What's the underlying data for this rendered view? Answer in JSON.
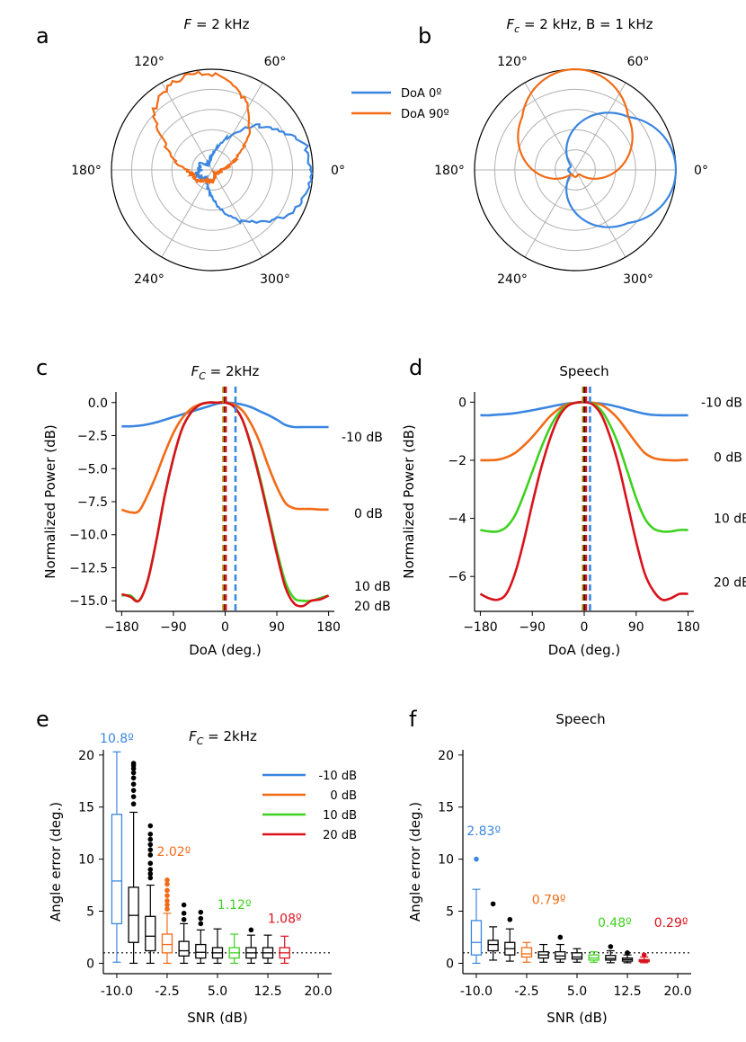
{
  "colors": {
    "blue": "#3a86e0",
    "orange": "#f26b16",
    "green": "#3fd11f",
    "red": "#d9121c",
    "black": "#000000",
    "grid": "#b0b0b0"
  },
  "chart_data": [
    {
      "panel": "a",
      "type": "polar",
      "title": "F = 2 kHz",
      "angle_ticks": [
        "0°",
        "60°",
        "120°",
        "180°",
        "240°",
        "300°"
      ],
      "radial_rings": 4,
      "series": [
        {
          "name": "DoA 0º",
          "color": "#3a86e0",
          "shape": "measured",
          "angles_deg": [
            0,
            15,
            30,
            45,
            60,
            75,
            90,
            105,
            120,
            135,
            150,
            165,
            180,
            195,
            210,
            225,
            240,
            255,
            270,
            285,
            300,
            315,
            330,
            345
          ],
          "radii": [
            0.98,
            0.96,
            0.78,
            0.62,
            0.4,
            0.25,
            0.14,
            0.1,
            0.08,
            0.07,
            0.12,
            0.14,
            0.12,
            0.16,
            0.14,
            0.12,
            0.1,
            0.18,
            0.28,
            0.42,
            0.6,
            0.72,
            0.88,
            0.95
          ]
        },
        {
          "name": "DoA 90º",
          "color": "#f26b16",
          "shape": "measured",
          "angles_deg": [
            0,
            15,
            30,
            45,
            60,
            75,
            90,
            105,
            120,
            135,
            150,
            165,
            180,
            195,
            210,
            225,
            240,
            255,
            270,
            285,
            300,
            315,
            330,
            345
          ],
          "radii": [
            0.1,
            0.18,
            0.3,
            0.52,
            0.72,
            0.86,
            0.95,
            0.98,
            0.92,
            0.82,
            0.55,
            0.38,
            0.25,
            0.2,
            0.18,
            0.16,
            0.12,
            0.1,
            0.12,
            0.1,
            0.06,
            0.05,
            0.06,
            0.08
          ]
        }
      ]
    },
    {
      "panel": "b",
      "type": "polar",
      "title": "F_c = 2 kHz, B = 1 kHz",
      "angle_ticks": [
        "0°",
        "60°",
        "120°",
        "180°",
        "240°",
        "300°"
      ],
      "radial_rings": 4,
      "series": [
        {
          "name": "DoA 0º",
          "color": "#3a86e0",
          "shape": "cardioid",
          "orientation_deg": 0
        },
        {
          "name": "DoA 90º",
          "color": "#f26b16",
          "shape": "cardioid",
          "orientation_deg": 90
        }
      ]
    },
    {
      "panel": "c",
      "type": "line",
      "title": "F_C = 2kHz",
      "xlabel": "DoA (deg.)",
      "ylabel": "Normalized Power (dB)",
      "xlim": [
        -190,
        190
      ],
      "ylim": [
        -15.8,
        0.8
      ],
      "xticks": [
        -180,
        -90,
        0,
        90,
        180
      ],
      "yticks": [
        0.0,
        -2.5,
        -5.0,
        -7.5,
        -10.0,
        -12.5,
        -15.0
      ],
      "x": [
        -180,
        -165,
        -150,
        -135,
        -120,
        -105,
        -90,
        -75,
        -60,
        -45,
        -30,
        -15,
        0,
        15,
        30,
        45,
        60,
        75,
        90,
        105,
        120,
        135,
        150,
        165,
        180
      ],
      "series": [
        {
          "name": "-10 dB",
          "color": "#3a86e0",
          "values": [
            -1.8,
            -1.8,
            -1.75,
            -1.65,
            -1.5,
            -1.3,
            -1.1,
            -0.9,
            -0.7,
            -0.5,
            -0.3,
            -0.1,
            0.0,
            -0.05,
            -0.15,
            -0.35,
            -0.65,
            -0.95,
            -1.3,
            -1.7,
            -1.85,
            -1.85,
            -1.85,
            -1.85,
            -1.85
          ]
        },
        {
          "name": "0 dB",
          "color": "#f26b16",
          "values": [
            -8.1,
            -8.3,
            -8.2,
            -7.0,
            -5.5,
            -3.8,
            -2.3,
            -1.2,
            -0.5,
            -0.15,
            0,
            0,
            0,
            -0.15,
            -0.6,
            -1.6,
            -3.0,
            -4.8,
            -6.4,
            -7.6,
            -8.0,
            -8.05,
            -8.05,
            -8.1,
            -8.1
          ]
        },
        {
          "name": "10 dB",
          "color": "#3fd11f",
          "values": [
            -14.6,
            -14.6,
            -15.0,
            -13.5,
            -10.5,
            -7.0,
            -4.2,
            -2.0,
            -0.8,
            -0.2,
            0,
            0,
            0,
            -0.3,
            -1.3,
            -3.2,
            -5.6,
            -8.4,
            -11.2,
            -13.6,
            -14.8,
            -15.0,
            -15.0,
            -14.8,
            -14.6
          ]
        },
        {
          "name": "20 dB",
          "color": "#d9121c",
          "values": [
            -14.5,
            -14.7,
            -15.0,
            -13.5,
            -10.5,
            -7.0,
            -4.2,
            -2.0,
            -0.8,
            -0.2,
            0,
            0,
            0,
            -0.3,
            -1.3,
            -3.3,
            -5.8,
            -8.6,
            -11.5,
            -14.0,
            -15.2,
            -15.4,
            -15.0,
            -14.9,
            -14.6
          ]
        }
      ],
      "vlines": [
        {
          "x": -3,
          "color": "#f26b16"
        },
        {
          "x": -1,
          "color": "#3fd11f"
        },
        {
          "x": 0,
          "color": "#000000"
        },
        {
          "x": 1,
          "color": "#d9121c"
        },
        {
          "x": 18,
          "color": "#3a86e0"
        }
      ],
      "end_labels": [
        {
          "text": "-10 dB",
          "y": -2.6
        },
        {
          "text": "0 dB",
          "y": -8.4
        },
        {
          "text": "10 dB",
          "y": -13.9
        },
        {
          "text": "20 dB",
          "y": -15.4
        }
      ]
    },
    {
      "panel": "d",
      "type": "line",
      "title": "Speech",
      "xlabel": "DoA (deg.)",
      "ylabel": "Normalized Power (dB)",
      "xlim": [
        -190,
        190
      ],
      "ylim": [
        -7.2,
        0.35
      ],
      "xticks": [
        -180,
        -90,
        0,
        90,
        180
      ],
      "yticks": [
        0,
        -2,
        -4,
        -6
      ],
      "x": [
        -180,
        -165,
        -150,
        -135,
        -120,
        -105,
        -90,
        -75,
        -60,
        -45,
        -30,
        -15,
        0,
        15,
        30,
        45,
        60,
        75,
        90,
        105,
        120,
        135,
        150,
        165,
        180
      ],
      "series": [
        {
          "name": "-10 dB",
          "color": "#3a86e0",
          "values": [
            -0.45,
            -0.45,
            -0.43,
            -0.41,
            -0.38,
            -0.33,
            -0.28,
            -0.22,
            -0.16,
            -0.1,
            -0.05,
            -0.02,
            0,
            -0.02,
            -0.05,
            -0.1,
            -0.17,
            -0.25,
            -0.33,
            -0.4,
            -0.44,
            -0.45,
            -0.45,
            -0.45,
            -0.45
          ]
        },
        {
          "name": "0 dB",
          "color": "#f26b16",
          "values": [
            -2.0,
            -2.0,
            -1.98,
            -1.9,
            -1.75,
            -1.5,
            -1.2,
            -0.85,
            -0.5,
            -0.25,
            -0.08,
            -0.02,
            0,
            -0.02,
            -0.1,
            -0.3,
            -0.6,
            -1.0,
            -1.4,
            -1.75,
            -1.92,
            -1.98,
            -2.0,
            -2.0,
            -1.98
          ]
        },
        {
          "name": "10 dB",
          "color": "#3fd11f",
          "values": [
            -4.4,
            -4.45,
            -4.45,
            -4.3,
            -3.9,
            -3.2,
            -2.4,
            -1.6,
            -0.9,
            -0.4,
            -0.12,
            -0.02,
            0,
            -0.05,
            -0.3,
            -0.8,
            -1.5,
            -2.4,
            -3.3,
            -4.0,
            -4.35,
            -4.45,
            -4.45,
            -4.4,
            -4.4
          ]
        },
        {
          "name": "20 dB",
          "color": "#d9121c",
          "values": [
            -6.6,
            -6.75,
            -6.8,
            -6.6,
            -5.9,
            -4.8,
            -3.5,
            -2.3,
            -1.3,
            -0.55,
            -0.15,
            -0.02,
            0,
            -0.08,
            -0.45,
            -1.2,
            -2.2,
            -3.5,
            -4.8,
            -5.9,
            -6.5,
            -6.8,
            -6.75,
            -6.6,
            -6.6
          ]
        }
      ],
      "vlines": [
        {
          "x": -2,
          "color": "#f26b16"
        },
        {
          "x": 0,
          "color": "#3fd11f"
        },
        {
          "x": 1,
          "color": "#000000"
        },
        {
          "x": 3,
          "color": "#d9121c"
        },
        {
          "x": 10,
          "color": "#3a86e0"
        }
      ],
      "end_labels": [
        {
          "text": "-10 dB",
          "y": 0
        },
        {
          "text": "0 dB",
          "y": -1.9
        },
        {
          "text": "10 dB",
          "y": -4.0
        },
        {
          "text": "20 dB",
          "y": -6.2
        }
      ]
    },
    {
      "panel": "e",
      "type": "box",
      "title": "F_C = 2kHz",
      "xlabel": "SNR (dB)",
      "ylabel": "Angle error (deg.)",
      "ylim": [
        -1,
        20.5
      ],
      "yticks": [
        0,
        5,
        10,
        15,
        20
      ],
      "x_positions": [
        -10,
        -7.5,
        -5,
        -2.5,
        0,
        2.5,
        5,
        7.5,
        10,
        12.5,
        15,
        17.5,
        20
      ],
      "xticks": [
        -10.0,
        -2.5,
        5.0,
        12.5,
        20.0
      ],
      "xticklabels": [
        "-10.0",
        "-2.5",
        "5.0",
        "12.5",
        "20.0"
      ],
      "reference_line": 1.0,
      "boxes": [
        {
          "snr": -10,
          "color": "#3a86e0",
          "q1": 3.8,
          "med": 7.9,
          "q3": 14.3,
          "lo": 0.1,
          "hi": 20.3,
          "fliers": []
        },
        {
          "snr": -7.5,
          "color": "#000000",
          "q1": 2.0,
          "med": 4.6,
          "q3": 7.3,
          "lo": 0.0,
          "hi": 14.5,
          "fliers": [
            15.3,
            16.0,
            16.6,
            17.2,
            17.8,
            18.3,
            18.7,
            19.0,
            19.2
          ]
        },
        {
          "snr": -5,
          "color": "#000000",
          "q1": 1.2,
          "med": 2.6,
          "q3": 4.5,
          "lo": 0.0,
          "hi": 7.5,
          "fliers": [
            8.2,
            8.6,
            9.0,
            9.6,
            10.4,
            10.9,
            11.4,
            11.9,
            12.4,
            13.2
          ]
        },
        {
          "snr": -2.5,
          "color": "#f26b16",
          "q1": 1.0,
          "med": 1.8,
          "q3": 2.8,
          "lo": 0.0,
          "hi": 4.8,
          "fliers": [
            5.2,
            5.6,
            6.0,
            6.5,
            7.0,
            7.6,
            8.0
          ]
        },
        {
          "snr": 0,
          "color": "#000000",
          "q1": 0.7,
          "med": 1.2,
          "q3": 2.1,
          "lo": 0.0,
          "hi": 3.8,
          "fliers": [
            4.2,
            4.8,
            5.6
          ]
        },
        {
          "snr": 2.5,
          "color": "#000000",
          "q1": 0.5,
          "med": 1.05,
          "q3": 1.8,
          "lo": 0.0,
          "hi": 3.2,
          "fliers": [
            3.8,
            4.3,
            4.9
          ]
        },
        {
          "snr": 5,
          "color": "#000000",
          "q1": 0.5,
          "med": 1.0,
          "q3": 1.5,
          "lo": 0.0,
          "hi": 3.3,
          "fliers": []
        },
        {
          "snr": 7.5,
          "color": "#3fd11f",
          "q1": 0.5,
          "med": 1.0,
          "q3": 1.5,
          "lo": 0.0,
          "hi": 2.8,
          "fliers": []
        },
        {
          "snr": 10,
          "color": "#000000",
          "q1": 0.5,
          "med": 1.0,
          "q3": 1.5,
          "lo": 0.0,
          "hi": 2.7,
          "fliers": [
            3.2
          ]
        },
        {
          "snr": 12.5,
          "color": "#000000",
          "q1": 0.5,
          "med": 1.0,
          "q3": 1.5,
          "lo": 0.0,
          "hi": 2.7,
          "fliers": []
        },
        {
          "snr": 15,
          "color": "#d9121c",
          "q1": 0.5,
          "med": 1.0,
          "q3": 1.5,
          "lo": 0.0,
          "hi": 2.6,
          "fliers": []
        }
      ],
      "annotations": [
        {
          "text": "10.8º",
          "snr": -10,
          "y": 21.2,
          "color": "#3a86e0"
        },
        {
          "text": "2.02º",
          "snr": -1.5,
          "y": 10.3,
          "color": "#f26b16"
        },
        {
          "text": "1.12º",
          "snr": 7.5,
          "y": 5.2,
          "color": "#3fd11f"
        },
        {
          "text": "1.08º",
          "snr": 15,
          "y": 3.9,
          "color": "#d9121c"
        }
      ],
      "legend": [
        {
          "label": "-10 dB",
          "color": "#3a86e0"
        },
        {
          "label": "0 dB",
          "color": "#f26b16"
        },
        {
          "label": "10 dB",
          "color": "#3fd11f"
        },
        {
          "label": "20 dB",
          "color": "#d9121c"
        }
      ]
    },
    {
      "panel": "f",
      "type": "box",
      "title": "Speech",
      "xlabel": "SNR (dB)",
      "ylabel": "Angle error (deg.)",
      "ylim": [
        -1,
        20.5
      ],
      "yticks": [
        0,
        5,
        10,
        15,
        20
      ],
      "x_positions": [
        -10,
        -7.5,
        -5,
        -2.5,
        0,
        2.5,
        5,
        7.5,
        10,
        12.5,
        15,
        17.5,
        20
      ],
      "xticks": [
        -10.0,
        -2.5,
        5.0,
        12.5,
        20.0
      ],
      "xticklabels": [
        "-10.0",
        "-2.5",
        "5.0",
        "12.5",
        "20.0"
      ],
      "reference_line": 1.0,
      "boxes": [
        {
          "snr": -10,
          "color": "#3a86e0",
          "q1": 0.8,
          "med": 2.0,
          "q3": 4.1,
          "lo": 0.0,
          "hi": 7.1,
          "fliers": [
            10.0
          ]
        },
        {
          "snr": -7.5,
          "color": "#000000",
          "q1": 1.2,
          "med": 1.8,
          "q3": 2.2,
          "lo": 0.3,
          "hi": 3.5,
          "fliers": [
            5.7
          ]
        },
        {
          "snr": -5,
          "color": "#000000",
          "q1": 0.8,
          "med": 1.4,
          "q3": 2.0,
          "lo": 0.2,
          "hi": 3.3,
          "fliers": [
            4.2
          ]
        },
        {
          "snr": -2.5,
          "color": "#f26b16",
          "q1": 0.6,
          "med": 0.9,
          "q3": 1.5,
          "lo": 0.1,
          "hi": 2.0,
          "fliers": []
        },
        {
          "snr": 0,
          "color": "#000000",
          "q1": 0.5,
          "med": 0.8,
          "q3": 1.1,
          "lo": 0.1,
          "hi": 1.8,
          "fliers": []
        },
        {
          "snr": 2.5,
          "color": "#000000",
          "q1": 0.4,
          "med": 0.7,
          "q3": 1.1,
          "lo": 0.1,
          "hi": 1.8,
          "fliers": [
            2.5
          ]
        },
        {
          "snr": 5,
          "color": "#000000",
          "q1": 0.4,
          "med": 0.6,
          "q3": 1.0,
          "lo": 0.1,
          "hi": 1.4,
          "fliers": []
        },
        {
          "snr": 7.5,
          "color": "#3fd11f",
          "q1": 0.3,
          "med": 0.5,
          "q3": 0.8,
          "lo": 0.1,
          "hi": 1.1,
          "fliers": []
        },
        {
          "snr": 10,
          "color": "#000000",
          "q1": 0.3,
          "med": 0.45,
          "q3": 0.75,
          "lo": 0.05,
          "hi": 1.2,
          "fliers": [
            1.6
          ]
        },
        {
          "snr": 12.5,
          "color": "#000000",
          "q1": 0.2,
          "med": 0.35,
          "q3": 0.5,
          "lo": 0.05,
          "hi": 0.8,
          "fliers": [
            1.0
          ]
        },
        {
          "snr": 15,
          "color": "#d9121c",
          "q1": 0.15,
          "med": 0.25,
          "q3": 0.35,
          "lo": 0.05,
          "hi": 0.6,
          "fliers": [
            0.8
          ]
        }
      ],
      "annotations": [
        {
          "text": "2.83º",
          "snr": -8.9,
          "y": 12.3,
          "color": "#3a86e0"
        },
        {
          "text": "0.79º",
          "snr": 0.8,
          "y": 5.7,
          "color": "#f26b16"
        },
        {
          "text": "0.48º",
          "snr": 10.6,
          "y": 3.5,
          "color": "#3fd11f"
        },
        {
          "text": "0.29º",
          "snr": 19.0,
          "y": 3.5,
          "color": "#d9121c"
        }
      ]
    }
  ]
}
